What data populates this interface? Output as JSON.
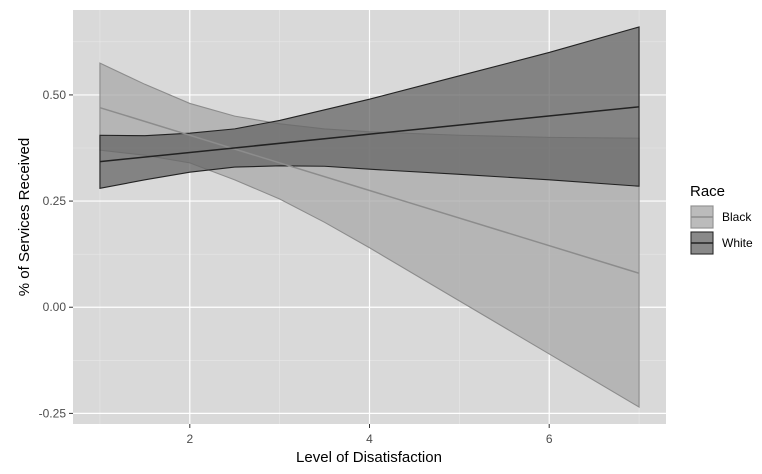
{
  "chart_data": {
    "type": "area",
    "xlabel": "Level of Disatisfaction",
    "ylabel": "% of Services Received",
    "xlim": [
      0.7,
      7.3
    ],
    "ylim": [
      -0.275,
      0.7
    ],
    "x_ticks": [
      {
        "value": 2,
        "label": "2"
      },
      {
        "value": 4,
        "label": "4"
      },
      {
        "value": 6,
        "label": "6"
      }
    ],
    "y_ticks": [
      {
        "value": -0.25,
        "label": "-0.25"
      },
      {
        "value": 0.0,
        "label": "0.00"
      },
      {
        "value": 0.25,
        "label": "0.25"
      },
      {
        "value": 0.5,
        "label": "0.50"
      }
    ],
    "grid": true,
    "legend": {
      "title": "Race",
      "position": "right"
    },
    "series": [
      {
        "name": "Black",
        "color": "#8c8c8c",
        "fill": "#a8a8a8",
        "fill_opacity": 0.75,
        "line": {
          "x": [
            1,
            7
          ],
          "y": [
            0.47,
            0.08
          ]
        },
        "upper": {
          "x": [
            1,
            1.5,
            2,
            2.5,
            3,
            3.5,
            4,
            5,
            6,
            7
          ],
          "y": [
            0.575,
            0.525,
            0.48,
            0.45,
            0.432,
            0.42,
            0.413,
            0.405,
            0.4,
            0.398
          ]
        },
        "lower": {
          "x": [
            1,
            1.5,
            2,
            2.5,
            3,
            3.5,
            4,
            5,
            6,
            7
          ],
          "y": [
            0.37,
            0.358,
            0.34,
            0.3,
            0.255,
            0.2,
            0.14,
            0.015,
            -0.11,
            -0.235
          ]
        }
      },
      {
        "name": "White",
        "color": "#222222",
        "fill": "#666666",
        "fill_opacity": 0.75,
        "line": {
          "x": [
            1,
            7
          ],
          "y": [
            0.343,
            0.472
          ]
        },
        "upper": {
          "x": [
            1,
            1.5,
            2,
            2.5,
            3,
            3.5,
            4,
            5,
            6,
            7
          ],
          "y": [
            0.405,
            0.404,
            0.41,
            0.42,
            0.44,
            0.465,
            0.49,
            0.545,
            0.6,
            0.66
          ]
        },
        "lower": {
          "x": [
            1,
            1.5,
            2,
            2.5,
            3,
            3.5,
            4,
            5,
            6,
            7
          ],
          "y": [
            0.28,
            0.3,
            0.318,
            0.33,
            0.333,
            0.332,
            0.325,
            0.313,
            0.3,
            0.285
          ]
        }
      }
    ]
  }
}
